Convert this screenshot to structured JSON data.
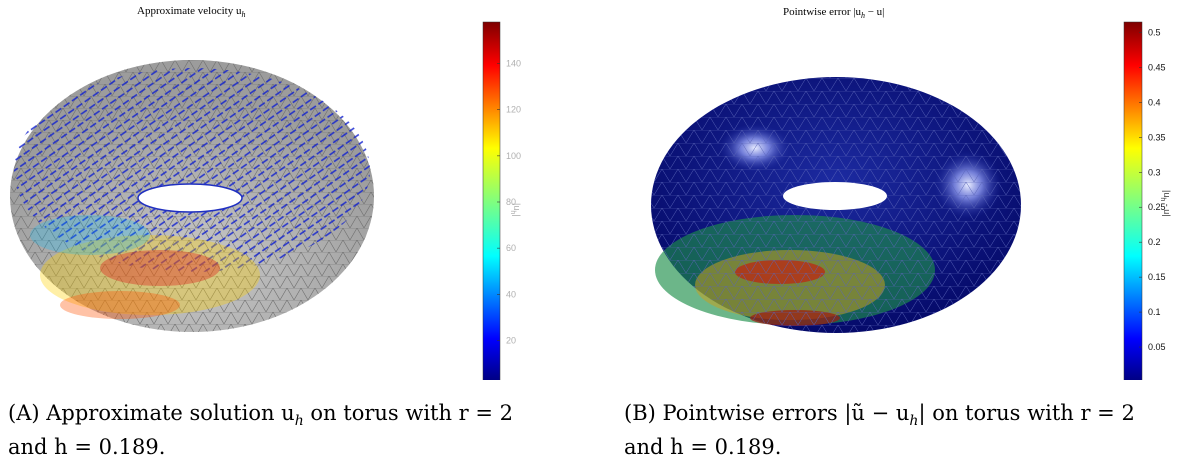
{
  "figure_a": {
    "title": "Approximate velocity u",
    "title_sub": "h",
    "colorbar": {
      "label": "|u",
      "label_sub": "h",
      "label_end": "|",
      "ticks": [
        "140",
        "120",
        "100",
        "80",
        "60",
        "40",
        "20"
      ],
      "tick_values": [
        140,
        120,
        100,
        80,
        60,
        40,
        20
      ],
      "range": [
        2,
        158
      ],
      "colormap": "jet"
    },
    "caption": {
      "tag": "(A)",
      "line1": "Approximate solution u",
      "line1_sub": "h",
      "line1_end": " on torus with r = 2",
      "line2": "and h = 0.189."
    }
  },
  "figure_b": {
    "title": "Pointwise error |u",
    "title_sub": "h",
    "title_end": " − u|",
    "colorbar": {
      "label": "|u",
      "label_sub": "h",
      "label_end": " - u|",
      "ticks": [
        "0.5",
        "0.45",
        "0.4",
        "0.35",
        "0.3",
        "0.25",
        "0.2",
        "0.15",
        "0.1",
        "0.05"
      ],
      "tick_values": [
        0.5,
        0.45,
        0.4,
        0.35,
        0.3,
        0.25,
        0.2,
        0.15,
        0.1,
        0.05
      ],
      "range": [
        0.0,
        0.515
      ],
      "colormap": "jet"
    },
    "caption": {
      "tag": "(B)",
      "line1": "Pointwise errors |ũ − u",
      "line1_sub": "h",
      "line1_end": "| on torus with r = 2",
      "line2": "and h = 0.189."
    }
  }
}
